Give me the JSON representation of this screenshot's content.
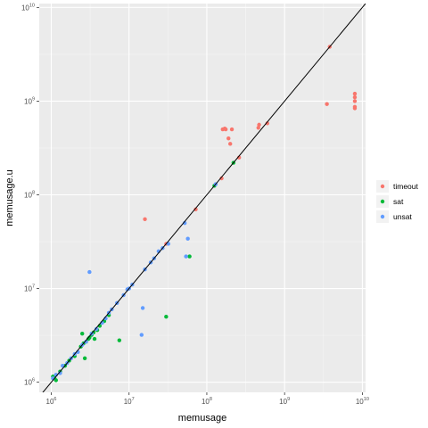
{
  "chart_data": {
    "type": "scatter",
    "xlabel": "memusage",
    "ylabel": "memusage.u",
    "x_scale": "log10",
    "y_scale": "log10",
    "xlim": [
      700000,
      11000000000
    ],
    "ylim": [
      780000,
      11000000000
    ],
    "x_ticks": [
      {
        "base": "10",
        "exp": "6",
        "value": 1000000
      },
      {
        "base": "10",
        "exp": "7",
        "value": 10000000
      },
      {
        "base": "10",
        "exp": "8",
        "value": 100000000
      },
      {
        "base": "10",
        "exp": "9",
        "value": 1000000000
      },
      {
        "base": "10",
        "exp": "10",
        "value": 10000000000
      }
    ],
    "y_ticks": [
      {
        "base": "10",
        "exp": "6",
        "value": 1000000
      },
      {
        "base": "10",
        "exp": "7",
        "value": 10000000
      },
      {
        "base": "10",
        "exp": "8",
        "value": 100000000
      },
      {
        "base": "10",
        "exp": "9",
        "value": 1000000000
      },
      {
        "base": "10",
        "exp": "10",
        "value": 10000000000
      }
    ],
    "grid": true,
    "reference_line": "y = x",
    "legend_position": "right",
    "series": [
      {
        "name": "timeout",
        "color": "#F8766D",
        "points": [
          [
            3800000000,
            3800000000
          ],
          [
            3500000000,
            930000000
          ],
          [
            8000000000,
            1200000000
          ],
          [
            8000000000,
            1100000000
          ],
          [
            8000000000,
            1000000000
          ],
          [
            8000000000,
            870000000
          ],
          [
            8000000000,
            840000000
          ],
          [
            600000000,
            580000000
          ],
          [
            470000000,
            560000000
          ],
          [
            460000000,
            520000000
          ],
          [
            160000000,
            500000000
          ],
          [
            170000000,
            510000000
          ],
          [
            175000000,
            500000000
          ],
          [
            210000000,
            500000000
          ],
          [
            190000000,
            400000000
          ],
          [
            200000000,
            350000000
          ],
          [
            260000000,
            250000000
          ],
          [
            155000000,
            150000000
          ],
          [
            16000000,
            55000000
          ],
          [
            72000000,
            70000000
          ],
          [
            30000000,
            30000000
          ]
        ]
      },
      {
        "name": "sat",
        "color": "#00BA38",
        "points": [
          [
            220000000,
            220000000
          ],
          [
            125000000,
            125000000
          ],
          [
            60000000,
            22000000
          ],
          [
            30000000,
            5000000
          ],
          [
            7500000,
            2800000
          ],
          [
            2700000,
            1800000
          ],
          [
            5500000,
            5200000
          ],
          [
            4800000,
            4500000
          ],
          [
            4200000,
            4000000
          ],
          [
            3900000,
            3600000
          ],
          [
            3500000,
            3400000
          ],
          [
            3300000,
            3200000
          ],
          [
            3100000,
            3000000
          ],
          [
            3000000,
            2900000
          ],
          [
            2800000,
            2700000
          ],
          [
            2600000,
            2600000
          ],
          [
            2400000,
            2400000
          ],
          [
            2500000,
            3300000
          ],
          [
            3600000,
            2900000
          ],
          [
            2000000,
            1900000
          ],
          [
            1700000,
            1700000
          ],
          [
            1500000,
            1500000
          ],
          [
            1300000,
            1300000
          ],
          [
            1100000,
            1100000
          ],
          [
            1050000,
            1150000
          ],
          [
            1150000,
            1050000
          ]
        ]
      },
      {
        "name": "unsat",
        "color": "#619CFF",
        "points": [
          [
            130000000,
            130000000
          ],
          [
            52000000,
            50000000
          ],
          [
            57000000,
            34000000
          ],
          [
            54000000,
            22000000
          ],
          [
            32000000,
            30000000
          ],
          [
            27000000,
            27000000
          ],
          [
            24000000,
            25000000
          ],
          [
            21000000,
            21000000
          ],
          [
            19000000,
            19000000
          ],
          [
            16000000,
            16000000
          ],
          [
            3100000,
            15000000
          ],
          [
            11000000,
            11000000
          ],
          [
            10000000,
            10000000
          ],
          [
            9500000,
            9800000
          ],
          [
            8500000,
            8500000
          ],
          [
            7000000,
            7000000
          ],
          [
            6000000,
            6000000
          ],
          [
            5500000,
            5500000
          ],
          [
            15000000,
            6200000
          ],
          [
            14500000,
            3200000
          ],
          [
            5000000,
            4800000
          ],
          [
            4500000,
            4300000
          ],
          [
            3800000,
            3700000
          ],
          [
            3300000,
            3300000
          ],
          [
            2800000,
            2700000
          ],
          [
            2500000,
            2500000
          ],
          [
            2200000,
            2100000
          ],
          [
            2000000,
            2000000
          ],
          [
            1800000,
            1800000
          ],
          [
            1600000,
            1600000
          ],
          [
            1400000,
            1500000
          ],
          [
            1300000,
            1250000
          ],
          [
            1150000,
            1200000
          ],
          [
            1050000,
            1100000
          ]
        ]
      }
    ]
  }
}
